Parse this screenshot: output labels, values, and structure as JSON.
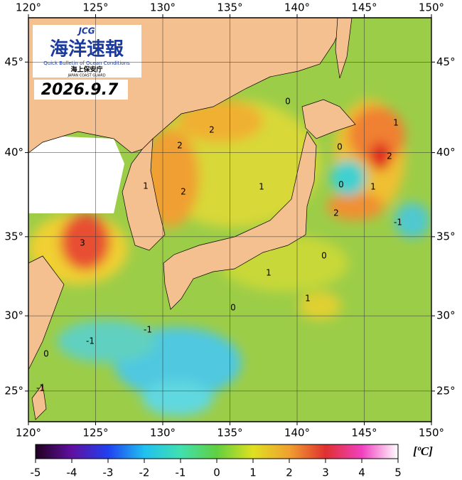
{
  "logo": {
    "mark": "JCG",
    "title": "海洋速報",
    "subtitle": "Quick Bulletin of Ocean Conditions",
    "agency": "海上保安庁",
    "agency_en": "JAPAN COAST GUARD"
  },
  "date": "2026.9.7",
  "map": {
    "lonlim": [
      120,
      150
    ],
    "latlim": [
      22.9,
      47.3
    ],
    "lon_ticks": [
      {
        "value": 120,
        "label": "120°"
      },
      {
        "value": 125,
        "label": "125°"
      },
      {
        "value": 130,
        "label": "130°"
      },
      {
        "value": 135,
        "label": "135°"
      },
      {
        "value": 140,
        "label": "140°"
      },
      {
        "value": 145,
        "label": "145°"
      },
      {
        "value": 150,
        "label": "150°"
      }
    ],
    "lat_ticks": [
      {
        "value": 25,
        "label": "25°"
      },
      {
        "value": 30,
        "label": "30°"
      },
      {
        "value": 35,
        "label": "35°"
      },
      {
        "value": 40,
        "label": "40°"
      },
      {
        "value": 45,
        "label": "45°"
      }
    ],
    "contour_labels": [
      "0",
      "2",
      "2",
      "1",
      "2",
      "1",
      "3",
      "1",
      "0",
      "2",
      "0",
      "1",
      "2",
      "-1",
      "0",
      "1",
      "1",
      "0",
      "-1",
      "-1",
      "0",
      "-1"
    ]
  },
  "colorbar": {
    "range": [
      -5,
      5
    ],
    "ticks": [
      -5,
      -4,
      -3,
      -2,
      -1,
      0,
      1,
      2,
      3,
      4,
      5
    ],
    "unit": "[ºC]"
  }
}
